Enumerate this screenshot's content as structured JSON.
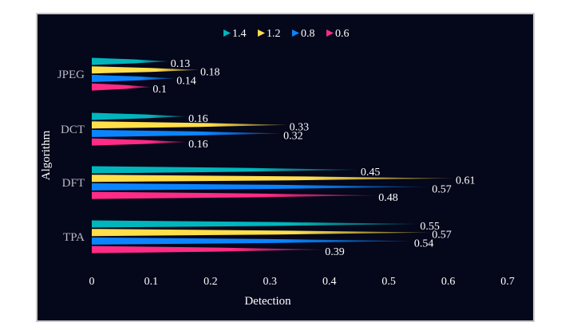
{
  "chart_data": {
    "type": "bar",
    "orientation": "horizontal",
    "title": "",
    "xlabel": "Detection",
    "ylabel": "Algorithm",
    "xlim": [
      0,
      0.7
    ],
    "xticks": [
      "0",
      "0.1",
      "0.2",
      "0.3",
      "0.4",
      "0.5",
      "0.6",
      "0.7"
    ],
    "categories": [
      "JPEG",
      "DCT",
      "DFT",
      "TPA"
    ],
    "legend_position": "top-center",
    "grid": false,
    "series": [
      {
        "name": "1.4",
        "color": "#00b6bd",
        "values": [
          0.13,
          0.16,
          0.45,
          0.55
        ],
        "labels": [
          "0.13",
          "0.16",
          "0.45",
          "0.55"
        ]
      },
      {
        "name": "1.2",
        "color": "#ffdf4a",
        "values": [
          0.18,
          0.33,
          0.61,
          0.57
        ],
        "labels": [
          "0.18",
          "0.33",
          "0.61",
          "0.57"
        ]
      },
      {
        "name": "0.8",
        "color": "#0b85ff",
        "values": [
          0.14,
          0.32,
          0.57,
          0.54
        ],
        "labels": [
          "0.14",
          "0.32",
          "0.57",
          "0.54"
        ]
      },
      {
        "name": "0.6",
        "color": "#ff2b86",
        "values": [
          0.1,
          0.16,
          0.48,
          0.39
        ],
        "labels": [
          "0.1",
          "0.16",
          "0.48",
          "0.39"
        ]
      }
    ]
  }
}
